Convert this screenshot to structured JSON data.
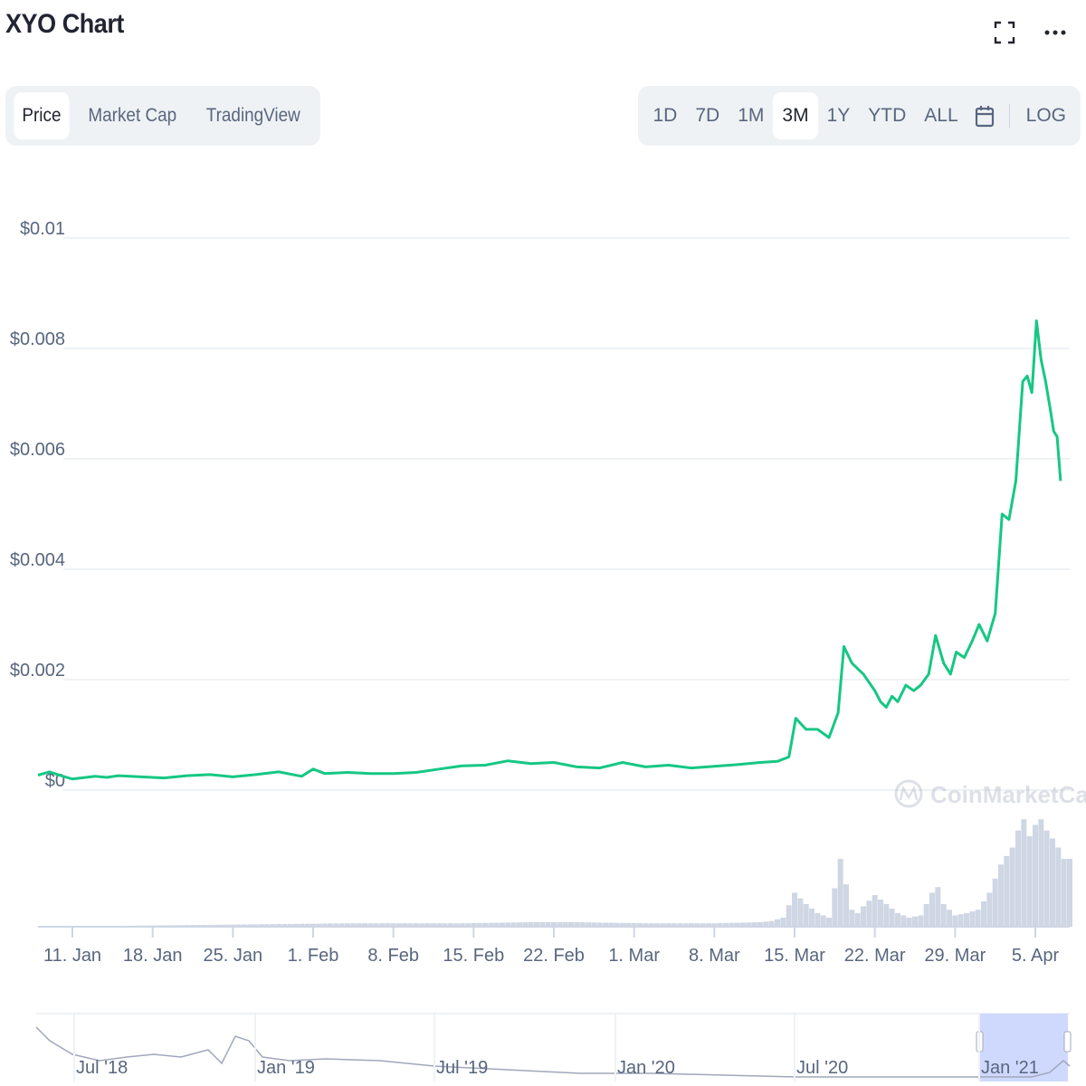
{
  "header": {
    "title": "XYO Chart",
    "fullscreen_icon": "expand-icon",
    "more_icon": "ellipsis-icon"
  },
  "tabs": [
    {
      "label": "Price",
      "active": true
    },
    {
      "label": "Market Cap",
      "active": false
    },
    {
      "label": "TradingView",
      "active": false
    }
  ],
  "ranges": [
    {
      "label": "1D",
      "active": false
    },
    {
      "label": "7D",
      "active": false
    },
    {
      "label": "1M",
      "active": false
    },
    {
      "label": "3M",
      "active": true
    },
    {
      "label": "1Y",
      "active": false
    },
    {
      "label": "YTD",
      "active": false
    },
    {
      "label": "ALL",
      "active": false
    }
  ],
  "calendar_icon": "calendar-icon",
  "log_label": "LOG",
  "watermark": "CoinMarketCap",
  "colors": {
    "price_line": "#16c784",
    "volume_bars": "#cfd6e4",
    "navigator_highlight": "#c7d2fe",
    "grid": "#eff2f5",
    "axis_text": "#58667e"
  },
  "chart_data": {
    "type": "line",
    "title": "XYO Chart",
    "y_ticks": [
      "$0",
      "$0.002",
      "$0.004",
      "$0.006",
      "$0.008",
      "$0.01"
    ],
    "y_tick_values": [
      0,
      0.002,
      0.004,
      0.006,
      0.008,
      0.01
    ],
    "ylim": [
      0,
      0.01
    ],
    "x_ticks": [
      "11. Jan",
      "18. Jan",
      "25. Jan",
      "1. Feb",
      "8. Feb",
      "15. Feb",
      "22. Feb",
      "1. Mar",
      "8. Mar",
      "15. Mar",
      "22. Mar",
      "29. Mar",
      "5. Apr"
    ],
    "x_tick_days": [
      6,
      13,
      20,
      27,
      34,
      41,
      48,
      55,
      62,
      69,
      76,
      83,
      90
    ],
    "x_range_days": [
      3,
      93
    ],
    "series": [
      {
        "x": [
          3,
          4,
          5,
          6,
          8,
          9,
          10,
          12,
          14,
          16,
          18,
          20,
          22,
          24,
          26,
          27,
          28,
          30,
          32,
          34,
          36,
          38,
          40,
          42,
          44,
          46,
          48,
          50,
          52,
          54,
          56,
          58,
          60,
          62,
          64,
          66,
          67.5,
          68.5,
          69.1,
          70,
          71,
          72,
          72.8,
          73.3,
          74,
          75,
          76,
          76.5,
          77,
          77.5,
          78,
          78.7,
          79.4,
          80,
          80.7,
          81.3,
          82,
          82.6,
          83.1,
          83.8,
          84.5,
          85.1,
          85.8,
          86.5,
          87.1,
          87.7,
          88.3,
          88.9,
          89.3,
          89.7,
          90.1,
          90.5,
          90.9,
          91.3,
          91.6,
          91.9,
          92.2
        ],
        "values": [
          0.00027,
          0.00033,
          0.00026,
          0.0002,
          0.00025,
          0.00023,
          0.00026,
          0.00024,
          0.00022,
          0.00026,
          0.00028,
          0.00024,
          0.00028,
          0.00033,
          0.00025,
          0.00038,
          0.0003,
          0.00032,
          0.0003,
          0.0003,
          0.00032,
          0.00038,
          0.00044,
          0.00045,
          0.00053,
          0.00048,
          0.0005,
          0.00042,
          0.0004,
          0.0005,
          0.00042,
          0.00045,
          0.0004,
          0.00043,
          0.00046,
          0.0005,
          0.00052,
          0.0006,
          0.0013,
          0.0011,
          0.0011,
          0.00095,
          0.0014,
          0.0026,
          0.0023,
          0.0021,
          0.0018,
          0.0016,
          0.0015,
          0.0017,
          0.0016,
          0.0019,
          0.0018,
          0.0019,
          0.0021,
          0.0028,
          0.0023,
          0.0021,
          0.0025,
          0.0024,
          0.0027,
          0.003,
          0.0027,
          0.0032,
          0.005,
          0.0049,
          0.0056,
          0.0074,
          0.0075,
          0.0072,
          0.0085,
          0.0078,
          0.0074,
          0.0069,
          0.0065,
          0.0064,
          0.0056
        ]
      }
    ],
    "volume": {
      "x": [
        3,
        30,
        34,
        40,
        46,
        50,
        56,
        62,
        66,
        67,
        68,
        69,
        70,
        71,
        72,
        73,
        74,
        74.5,
        75,
        76,
        77,
        78,
        79,
        80,
        81,
        81.5,
        82,
        83,
        84,
        85,
        86,
        87,
        88,
        88.5,
        89,
        89.5,
        90,
        90.5,
        91,
        91.5,
        92,
        92.5
      ],
      "values": [
        0,
        0.03,
        0.03,
        0.03,
        0.04,
        0.04,
        0.03,
        0.03,
        0.04,
        0.05,
        0.08,
        0.3,
        0.2,
        0.12,
        0.08,
        0.6,
        0.15,
        0.12,
        0.18,
        0.28,
        0.2,
        0.12,
        0.08,
        0.1,
        0.3,
        0.35,
        0.2,
        0.1,
        0.12,
        0.15,
        0.3,
        0.55,
        0.7,
        0.85,
        0.95,
        0.8,
        0.9,
        0.95,
        0.85,
        0.78,
        0.7,
        0.6
      ]
    },
    "navigator": {
      "x_ticks": [
        "Jul '18",
        "Jan '19",
        "Jul '19",
        "Jan '20",
        "Jul '20",
        "Jan '21"
      ]
    },
    "grid": true,
    "legend": "none",
    "log_scale": false
  }
}
